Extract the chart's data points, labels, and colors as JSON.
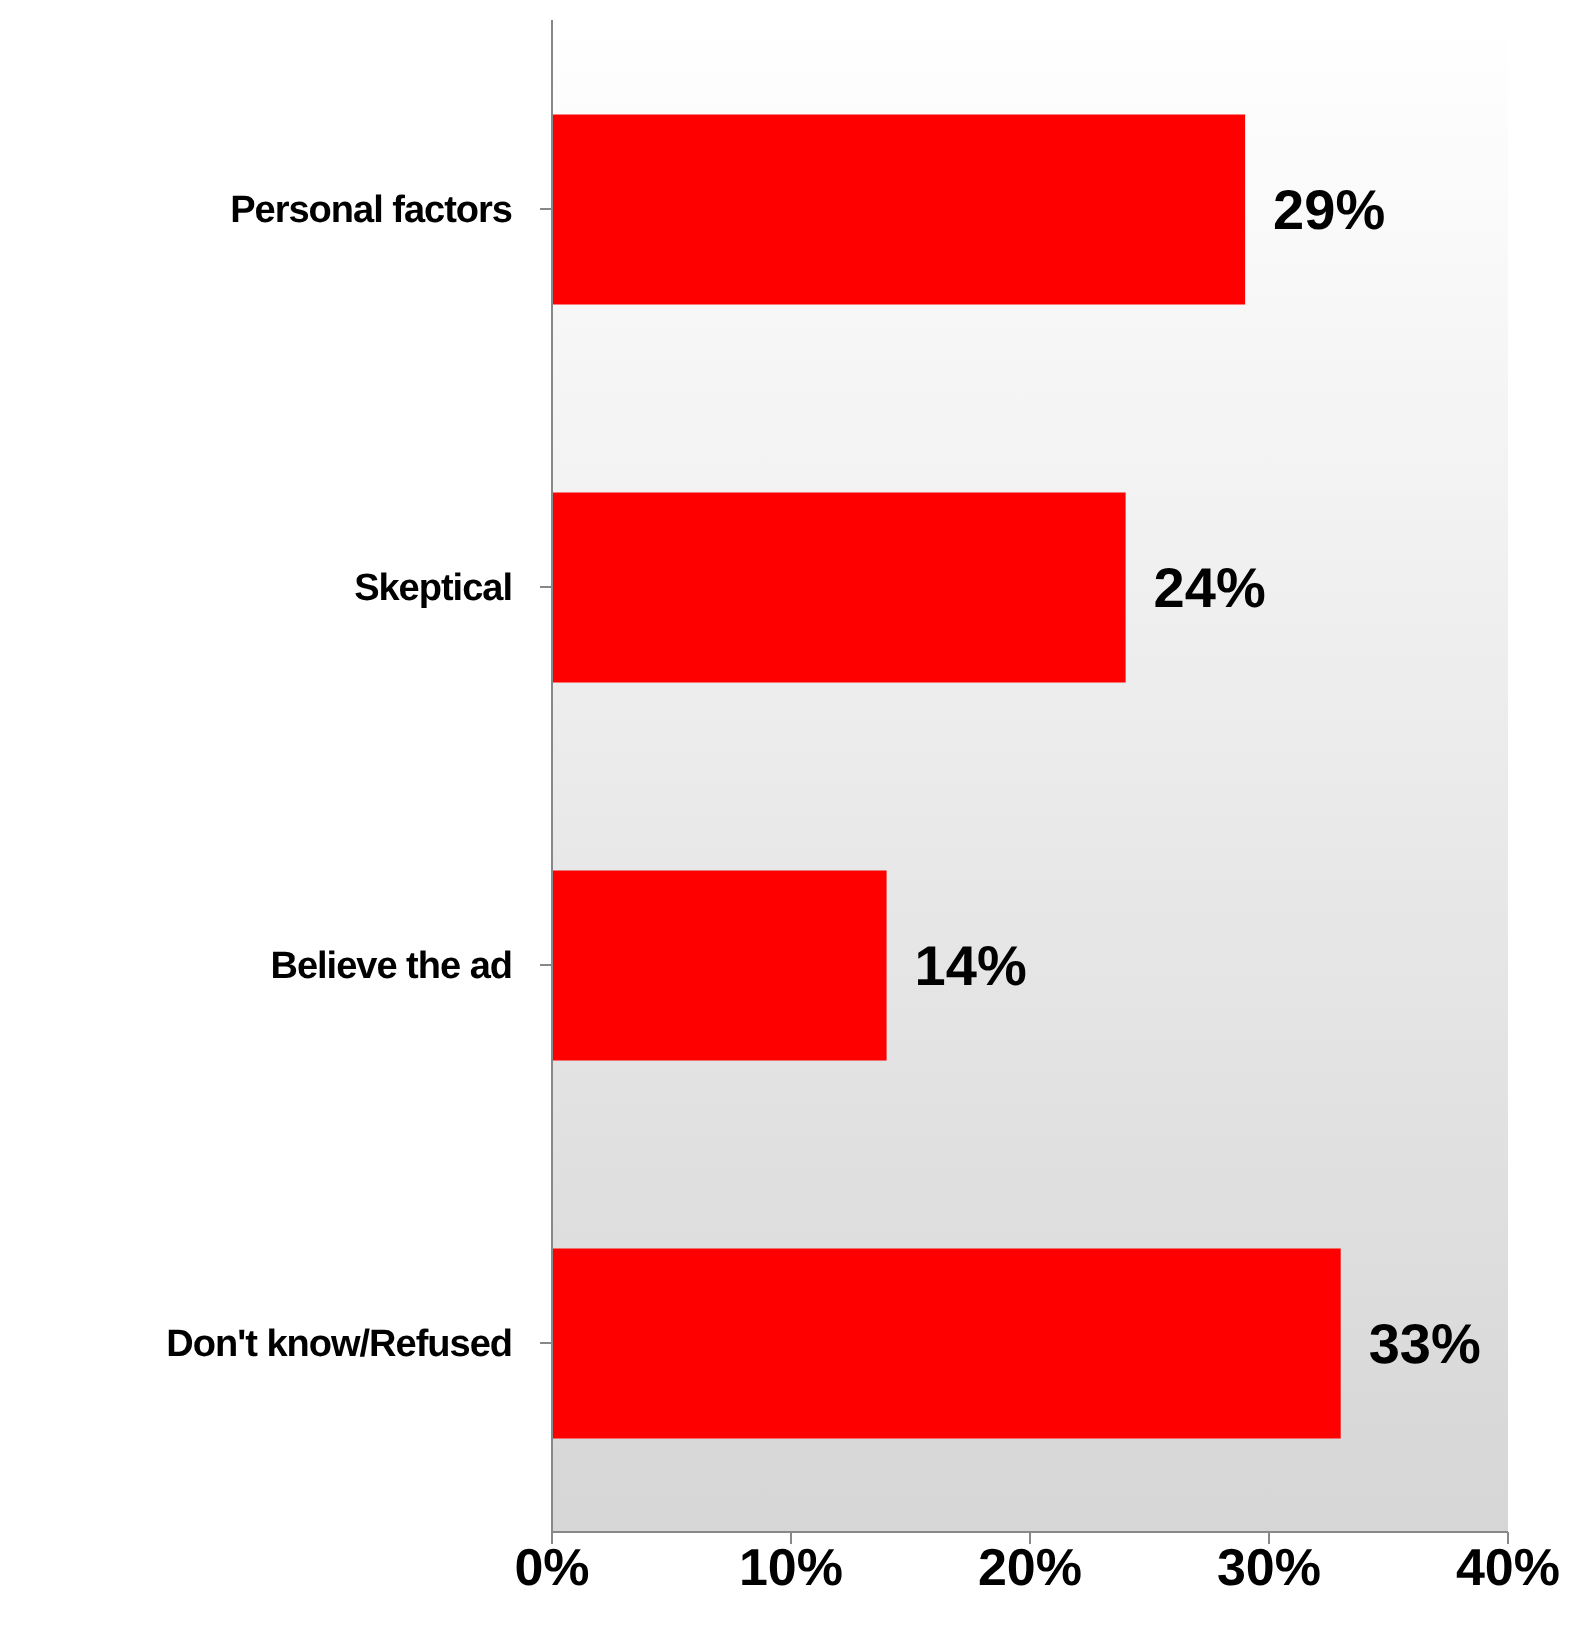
{
  "chart_data": {
    "type": "bar",
    "orientation": "horizontal",
    "categories": [
      "Personal factors",
      "Skeptical",
      "Believe the ad",
      "Don't know/Refused"
    ],
    "values": [
      29,
      24,
      14,
      33
    ],
    "color": "#ff0000",
    "value_labels": [
      "29%",
      "24%",
      "14%",
      "33%"
    ],
    "xlim": [
      0,
      40
    ],
    "xticks": [
      {
        "value": 0,
        "label": "0%"
      },
      {
        "value": 10,
        "label": "10%"
      },
      {
        "value": 20,
        "label": "20%"
      },
      {
        "value": 30,
        "label": "30%"
      },
      {
        "value": 40,
        "label": "40%"
      }
    ],
    "grid": false,
    "legend": false
  }
}
